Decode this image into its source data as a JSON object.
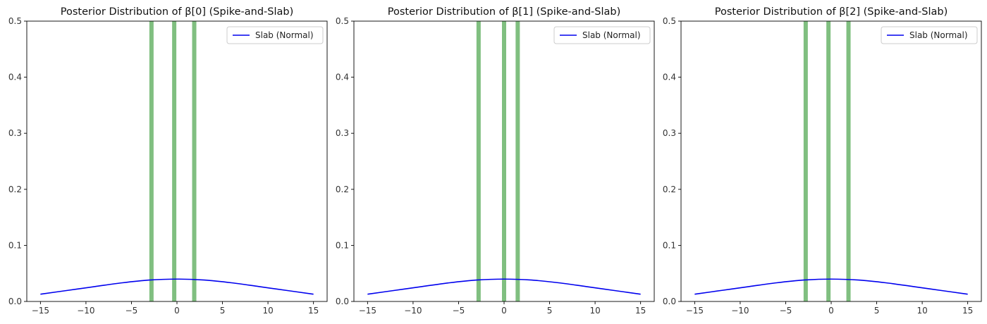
{
  "chart_data": [
    {
      "type": "line",
      "title": "Posterior Distribution of β[0] (Spike-and-Slab)",
      "xlabel": "",
      "ylabel": "",
      "xlim": [
        -16.5,
        16.5
      ],
      "ylim": [
        0,
        0.5
      ],
      "xticks": [
        -15,
        -10,
        -5,
        0,
        5,
        10,
        15
      ],
      "xtick_labels": [
        "−15",
        "−10",
        "−5",
        "0",
        "5",
        "10",
        "15"
      ],
      "yticks": [
        0.0,
        0.1,
        0.2,
        0.3,
        0.4,
        0.5
      ],
      "ytick_labels": [
        "0.0",
        "0.1",
        "0.2",
        "0.3",
        "0.4",
        "0.5"
      ],
      "grid": false,
      "legend_position": "top-right",
      "series": [
        {
          "name": "Slab (Normal)",
          "color": "#0000ee",
          "x": [
            -15,
            -12,
            -9,
            -6,
            -3,
            0,
            3,
            6,
            9,
            12,
            15
          ],
          "y": [
            0.013,
            0.0198,
            0.0266,
            0.0333,
            0.0382,
            0.0399,
            0.0382,
            0.0333,
            0.0266,
            0.0198,
            0.013
          ]
        }
      ],
      "spike_lines": {
        "color": "#80bf80",
        "x": [
          -2.8,
          -0.3,
          1.9
        ]
      }
    },
    {
      "type": "line",
      "title": "Posterior Distribution of β[1] (Spike-and-Slab)",
      "xlabel": "",
      "ylabel": "",
      "xlim": [
        -16.5,
        16.5
      ],
      "ylim": [
        0,
        0.5
      ],
      "xticks": [
        -15,
        -10,
        -5,
        0,
        5,
        10,
        15
      ],
      "xtick_labels": [
        "−15",
        "−10",
        "−5",
        "0",
        "5",
        "10",
        "15"
      ],
      "yticks": [
        0.0,
        0.1,
        0.2,
        0.3,
        0.4,
        0.5
      ],
      "ytick_labels": [
        "0.0",
        "0.1",
        "0.2",
        "0.3",
        "0.4",
        "0.5"
      ],
      "grid": false,
      "legend_position": "top-right",
      "series": [
        {
          "name": "Slab (Normal)",
          "color": "#0000ee",
          "x": [
            -15,
            -12,
            -9,
            -6,
            -3,
            0,
            3,
            6,
            9,
            12,
            15
          ],
          "y": [
            0.013,
            0.0198,
            0.0266,
            0.0333,
            0.0382,
            0.0399,
            0.0382,
            0.0333,
            0.0266,
            0.0198,
            0.013
          ]
        }
      ],
      "spike_lines": {
        "color": "#80bf80",
        "x": [
          -2.8,
          0.0,
          1.5
        ]
      }
    },
    {
      "type": "line",
      "title": "Posterior Distribution of β[2] (Spike-and-Slab)",
      "xlabel": "",
      "ylabel": "",
      "xlim": [
        -16.5,
        16.5
      ],
      "ylim": [
        0,
        0.5
      ],
      "xticks": [
        -15,
        -10,
        -5,
        0,
        5,
        10,
        15
      ],
      "xtick_labels": [
        "−15",
        "−10",
        "−5",
        "0",
        "5",
        "10",
        "15"
      ],
      "yticks": [
        0.0,
        0.1,
        0.2,
        0.3,
        0.4,
        0.5
      ],
      "ytick_labels": [
        "0.0",
        "0.1",
        "0.2",
        "0.3",
        "0.4",
        "0.5"
      ],
      "grid": false,
      "legend_position": "top-right",
      "series": [
        {
          "name": "Slab (Normal)",
          "color": "#0000ee",
          "x": [
            -15,
            -12,
            -9,
            -6,
            -3,
            0,
            3,
            6,
            9,
            12,
            15
          ],
          "y": [
            0.013,
            0.0198,
            0.0266,
            0.0333,
            0.0382,
            0.0399,
            0.0382,
            0.0333,
            0.0266,
            0.0198,
            0.013
          ]
        }
      ],
      "spike_lines": {
        "color": "#80bf80",
        "x": [
          -2.8,
          -0.3,
          1.9
        ]
      }
    }
  ]
}
